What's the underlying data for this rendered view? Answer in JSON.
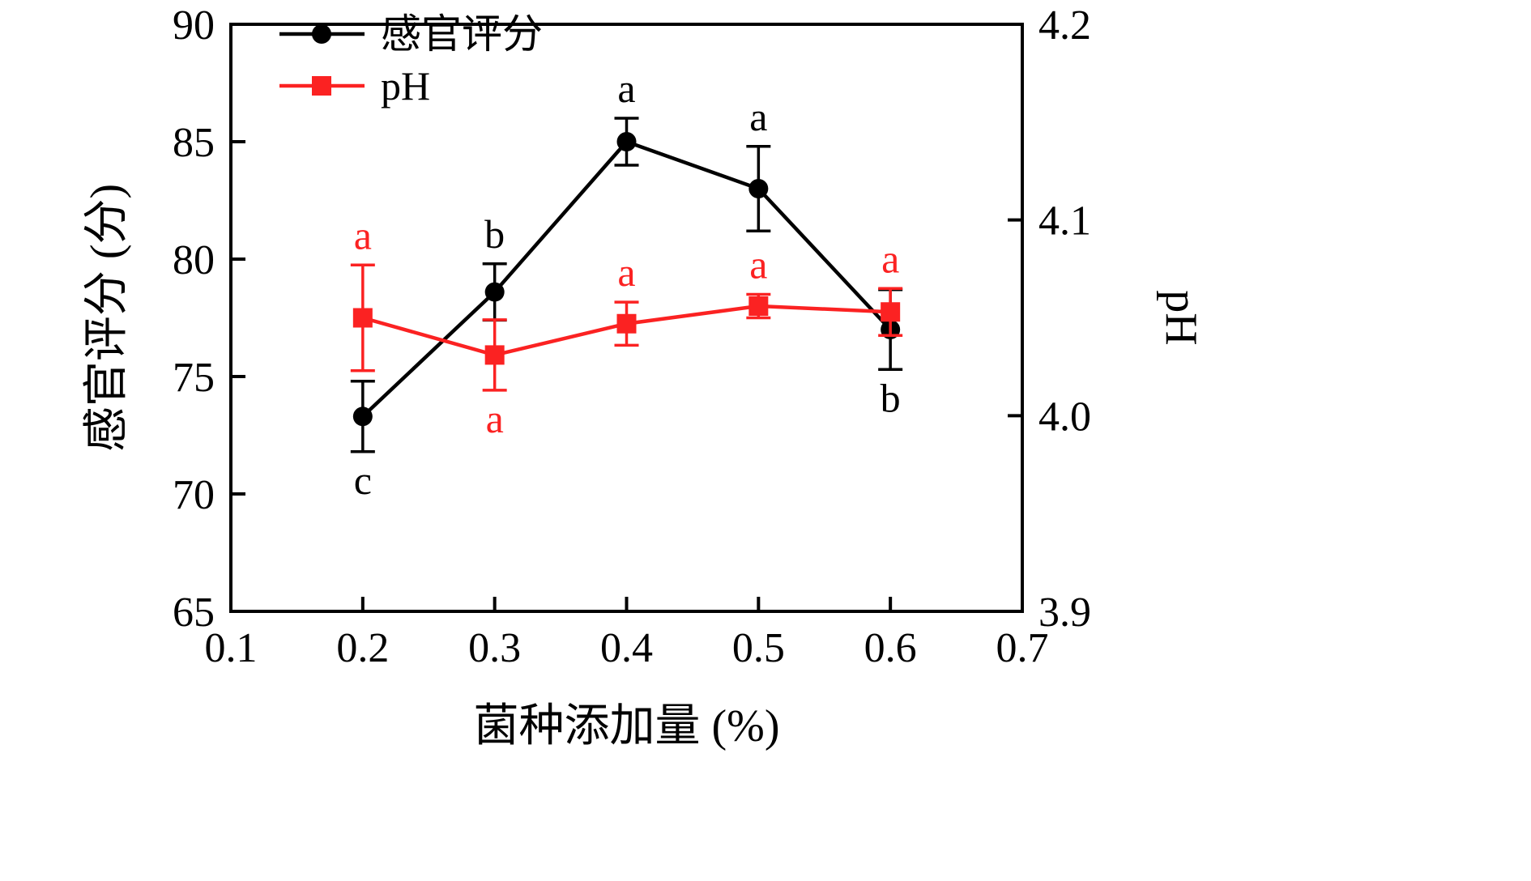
{
  "chart_data": {
    "type": "line",
    "title": "",
    "xlabel": "菌种添加量 (%)",
    "ylabel_left": "感官评分 (分)",
    "ylabel_right": "pH",
    "xlim": [
      0.1,
      0.7
    ],
    "ylim_left": [
      65,
      90
    ],
    "ylim_right": [
      3.9,
      4.2
    ],
    "x_tick_labels": [
      "0.1",
      "0.2",
      "0.3",
      "0.4",
      "0.5",
      "0.6",
      "0.7"
    ],
    "y_left_tick_labels": [
      "65",
      "70",
      "75",
      "80",
      "85",
      "90"
    ],
    "y_right_tick_labels": [
      "3.9",
      "4.0",
      "4.1",
      "4.2"
    ],
    "grid": false,
    "legend_position": "top-left-inside",
    "series": [
      {
        "name": "感官评分",
        "axis": "left",
        "color": "#000000",
        "marker": "circle",
        "x": [
          0.2,
          0.3,
          0.4,
          0.5,
          0.6
        ],
        "y": [
          73.3,
          78.6,
          85.0,
          83.0,
          77.0
        ],
        "error": [
          1.5,
          1.2,
          1.0,
          1.8,
          1.7
        ],
        "point_labels": [
          "c",
          "b",
          "a",
          "a",
          "b"
        ],
        "label_side": [
          "below",
          "above",
          "above",
          "above",
          "below"
        ]
      },
      {
        "name": "pH",
        "axis": "right",
        "color": "#fb2222",
        "marker": "square",
        "x": [
          0.2,
          0.3,
          0.4,
          0.5,
          0.6
        ],
        "y": [
          4.05,
          4.031,
          4.047,
          4.056,
          4.053
        ],
        "error": [
          0.027,
          0.018,
          0.011,
          0.006,
          0.012
        ],
        "point_labels": [
          "a",
          "a",
          "a",
          "a",
          "a"
        ],
        "label_side": [
          "above",
          "below",
          "above",
          "above",
          "above"
        ]
      }
    ]
  }
}
